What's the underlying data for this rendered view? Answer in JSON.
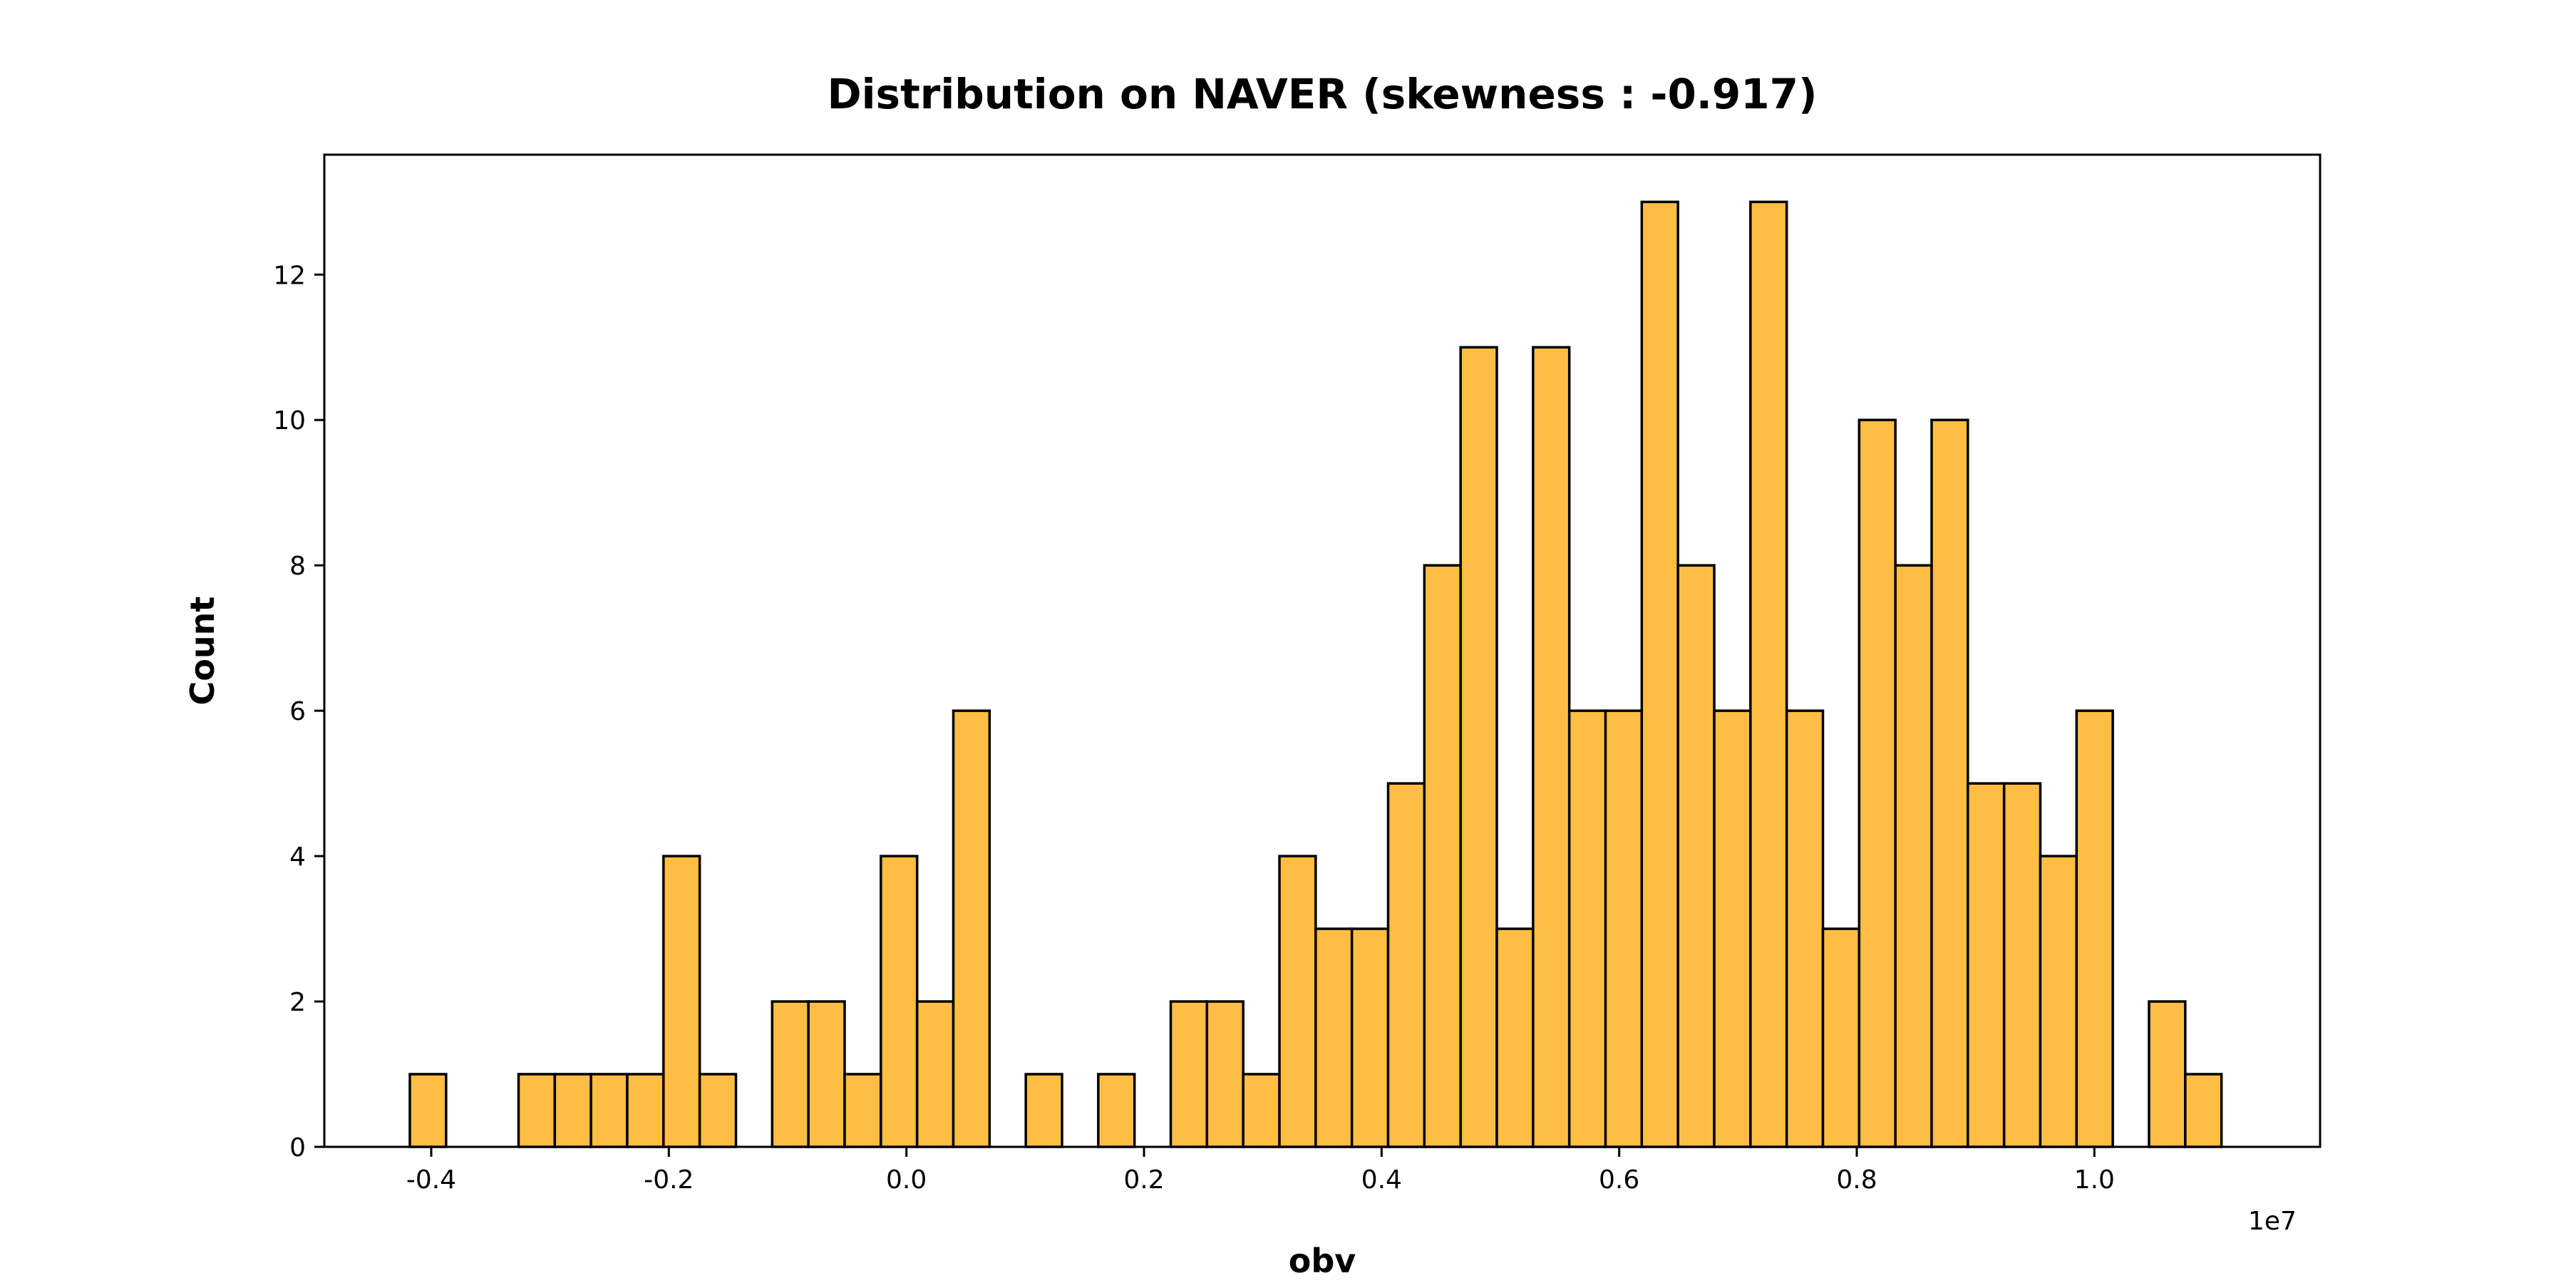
{
  "chart_data": {
    "type": "bar",
    "title": "Distribution on NAVER (skewness : -0.917)",
    "xlabel": "obv",
    "ylabel": "Count",
    "x_offset_label": "1e7",
    "bin_start": -0.418,
    "bin_width": 0.0305,
    "counts": [
      1,
      0,
      0,
      1,
      1,
      1,
      1,
      4,
      1,
      0,
      2,
      2,
      1,
      4,
      2,
      6,
      0,
      1,
      0,
      1,
      0,
      2,
      2,
      1,
      4,
      3,
      3,
      5,
      8,
      11,
      3,
      11,
      6,
      6,
      13,
      8,
      6,
      13,
      6,
      3,
      10,
      8,
      10,
      5,
      5,
      4,
      6,
      0,
      2,
      1
    ],
    "xlim": [
      -0.49,
      1.19
    ],
    "ylim": [
      0,
      13.65
    ],
    "x_ticks": [
      -0.4,
      -0.2,
      0.0,
      0.2,
      0.4,
      0.6,
      0.8,
      1.0
    ],
    "x_tick_labels": [
      "-0.4",
      "-0.2",
      "0.0",
      "0.2",
      "0.4",
      "0.6",
      "0.8",
      "1.0"
    ],
    "y_ticks": [
      0,
      2,
      4,
      6,
      8,
      10,
      12
    ],
    "y_tick_labels": [
      "0",
      "2",
      "4",
      "6",
      "8",
      "10",
      "12"
    ],
    "bar_color": "#ffbe43",
    "edge_color": "#000000",
    "grid": false,
    "legend": "none"
  }
}
